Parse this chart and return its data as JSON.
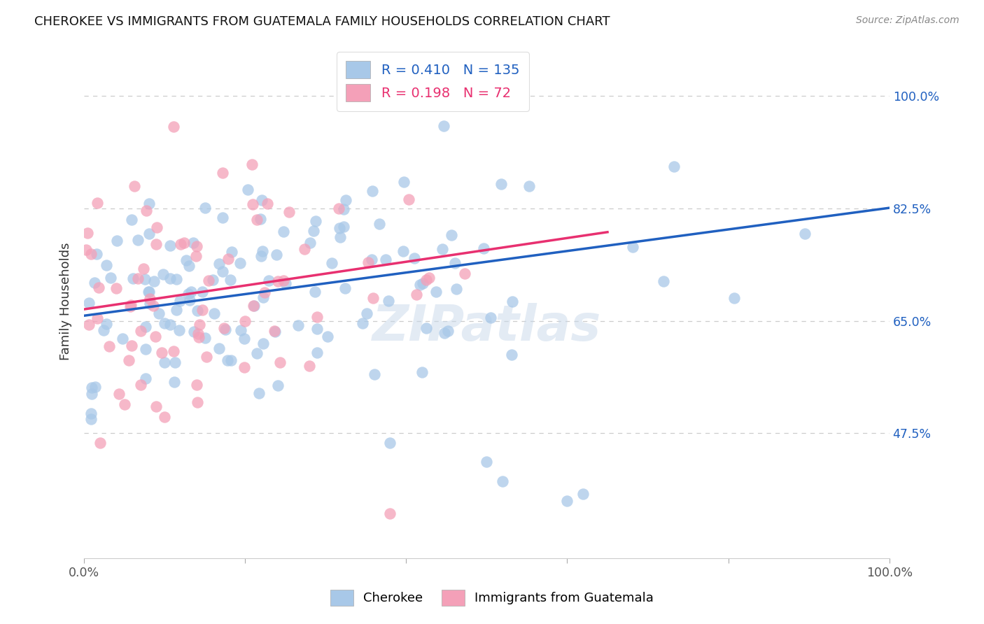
{
  "title": "CHEROKEE VS IMMIGRANTS FROM GUATEMALA FAMILY HOUSEHOLDS CORRELATION CHART",
  "source": "Source: ZipAtlas.com",
  "ylabel": "Family Households",
  "legend_label_1": "Cherokee",
  "legend_label_2": "Immigrants from Guatemala",
  "R1": "0.410",
  "N1": "135",
  "R2": "0.198",
  "N2": "72",
  "color_blue": "#a8c8e8",
  "color_pink": "#f4a0b8",
  "color_blue_line": "#2060c0",
  "color_pink_line": "#e83070",
  "color_blue_text": "#2060c0",
  "watermark": "ZIPatlas",
  "ytick_values": [
    0.475,
    0.65,
    0.825,
    1.0
  ],
  "ytick_labels": [
    "47.5%",
    "65.0%",
    "82.5%",
    "100.0%"
  ],
  "ylim_low": 0.28,
  "ylim_high": 1.08,
  "xlim_low": 0.0,
  "xlim_high": 1.0
}
